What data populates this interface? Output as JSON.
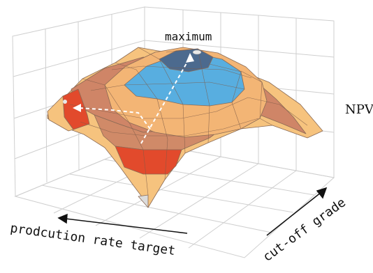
{
  "labels": {
    "maximum": "maximum",
    "zlabel": "NPV",
    "xlabel": "prodcution rate target",
    "ylabel": "cut-off grade"
  },
  "colors": {
    "band_outer": "#f6c37e",
    "band_brown": "#cf8567",
    "band_red": "#e24a2c",
    "band_peach": "#f3b575",
    "band_blue": "#58aee0",
    "band_top": "#4c6a8e",
    "grid": "#cfcfcf",
    "path": "#ffffff"
  }
}
